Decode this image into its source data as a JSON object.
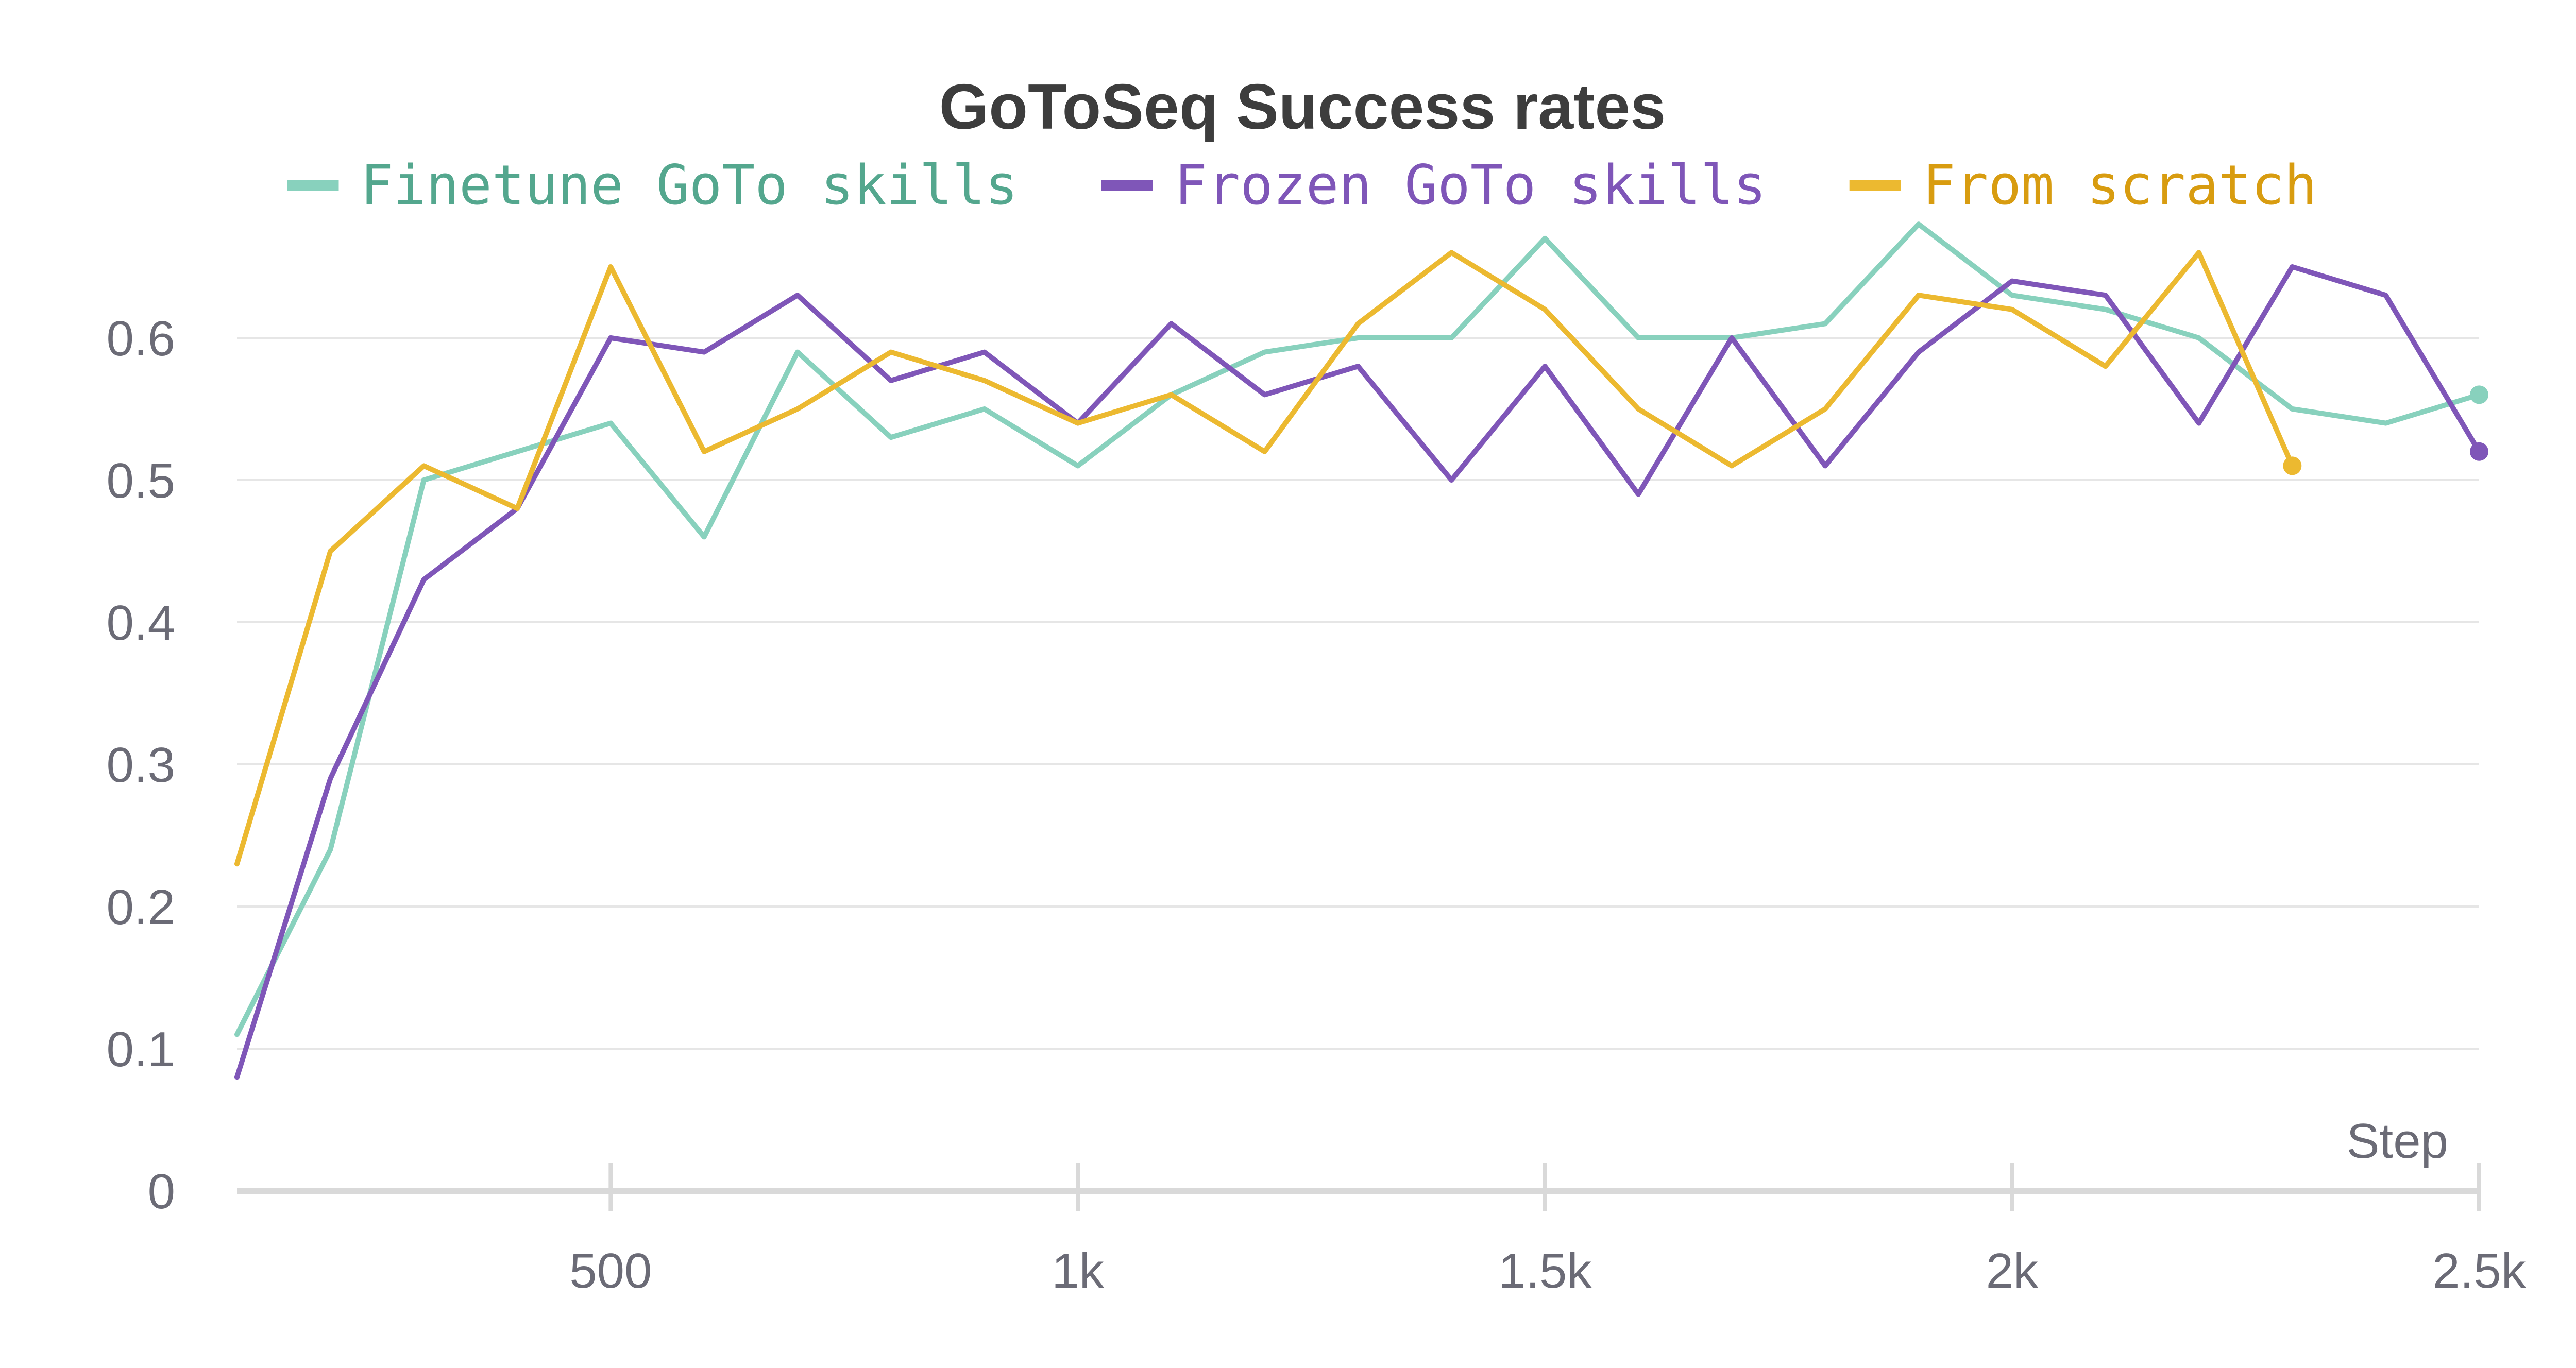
{
  "chart_data": {
    "type": "line",
    "title": "GoToSeq Success rates",
    "xlabel": "Step",
    "ylabel": "",
    "xlim": [
      100,
      2500
    ],
    "ylim": [
      0,
      0.7
    ],
    "x_ticks": [
      500,
      1000,
      1500,
      2000,
      2500
    ],
    "x_tick_labels": [
      "500",
      "1k",
      "1.5k",
      "2k",
      "2.5k"
    ],
    "y_ticks": [
      0,
      0.1,
      0.2,
      0.3,
      0.4,
      0.5,
      0.6
    ],
    "y_tick_labels": [
      "0",
      "0.1",
      "0.2",
      "0.3",
      "0.4",
      "0.5",
      "0.6"
    ],
    "grid": true,
    "legend_position": "top",
    "series": [
      {
        "name": "Finetune GoTo skills",
        "color": "#88d1bd",
        "text_color": "#54a78e",
        "x": [
          100,
          200,
          300,
          400,
          500,
          600,
          700,
          800,
          900,
          1000,
          1100,
          1200,
          1300,
          1400,
          1500,
          1600,
          1700,
          1800,
          1900,
          2000,
          2100,
          2200,
          2300,
          2400,
          2500
        ],
        "y": [
          0.11,
          0.24,
          0.5,
          0.52,
          0.54,
          0.46,
          0.59,
          0.53,
          0.55,
          0.51,
          0.56,
          0.59,
          0.6,
          0.6,
          0.67,
          0.6,
          0.6,
          0.61,
          0.68,
          0.63,
          0.62,
          0.6,
          0.55,
          0.54,
          0.56
        ],
        "end_marker": true
      },
      {
        "name": "Frozen GoTo skills",
        "color": "#7f56b8",
        "text_color": "#7f56b8",
        "x": [
          100,
          200,
          300,
          400,
          500,
          600,
          700,
          800,
          900,
          1000,
          1100,
          1200,
          1300,
          1400,
          1500,
          1600,
          1700,
          1800,
          1900,
          2000,
          2100,
          2200,
          2300,
          2400,
          2500
        ],
        "y": [
          0.08,
          0.29,
          0.43,
          0.48,
          0.6,
          0.59,
          0.63,
          0.57,
          0.59,
          0.54,
          0.61,
          0.56,
          0.58,
          0.5,
          0.58,
          0.49,
          0.6,
          0.51,
          0.59,
          0.64,
          0.63,
          0.54,
          0.65,
          0.63,
          0.52
        ],
        "end_marker": true
      },
      {
        "name": "From scratch",
        "color": "#ecb930",
        "text_color": "#d89c10",
        "x": [
          100,
          200,
          300,
          400,
          500,
          600,
          700,
          800,
          900,
          1000,
          1100,
          1200,
          1300,
          1400,
          1500,
          1600,
          1700,
          1800,
          1900,
          2000,
          2100,
          2200,
          2300
        ],
        "y": [
          0.23,
          0.45,
          0.51,
          0.48,
          0.65,
          0.52,
          0.55,
          0.59,
          0.57,
          0.54,
          0.56,
          0.52,
          0.61,
          0.66,
          0.62,
          0.55,
          0.51,
          0.55,
          0.63,
          0.62,
          0.58,
          0.66,
          0.51
        ],
        "end_marker": true
      }
    ]
  }
}
